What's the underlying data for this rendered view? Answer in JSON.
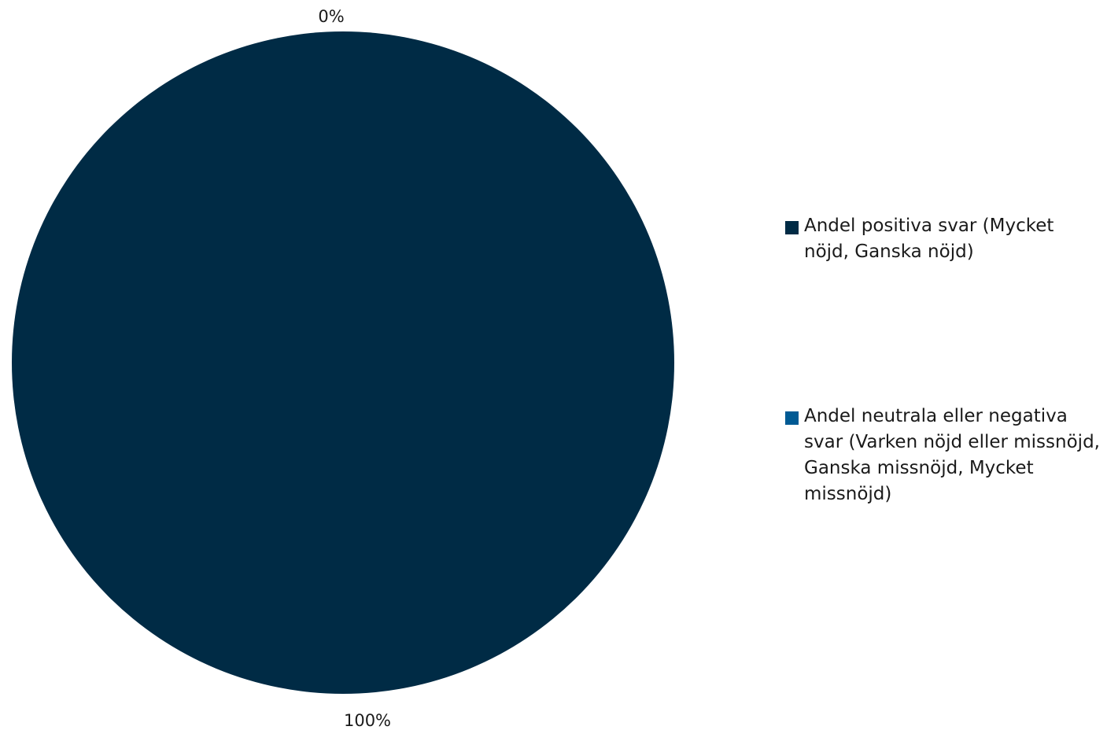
{
  "chart_data": {
    "type": "pie",
    "series": [
      {
        "name": "Andel positiva svar (Mycket nöjd, Ganska nöjd)",
        "value": 100,
        "label": "100%",
        "color": "#002b45"
      },
      {
        "name": "Andel neutrala eller negativa svar (Varken nöjd eller missnöjd, Ganska missnöjd, Mycket missnöjd)",
        "value": 0,
        "label": "0%",
        "color": "#005a94"
      }
    ],
    "legend_position": "right"
  }
}
